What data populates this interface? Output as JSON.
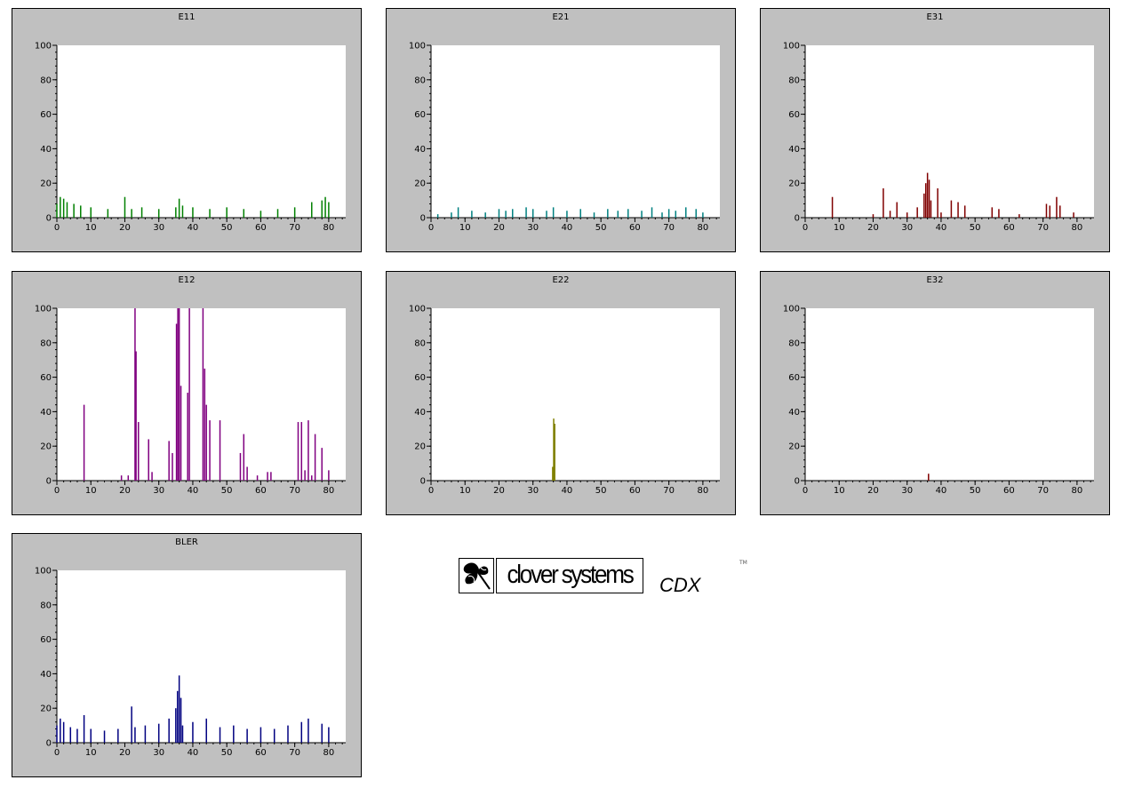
{
  "chart_data": [
    {
      "type": "bar",
      "title": "E11",
      "color": "#008000",
      "xlim": [
        0,
        85
      ],
      "ylim": [
        0,
        100
      ],
      "xticks": [
        0,
        10,
        20,
        30,
        40,
        50,
        60,
        70,
        80
      ],
      "yticks": [
        0,
        20,
        40,
        60,
        80,
        100
      ],
      "series": [
        {
          "x": [
            0,
            1,
            2,
            3,
            5,
            7,
            10,
            15,
            20,
            22,
            25,
            30,
            35,
            36,
            37,
            40,
            45,
            50,
            55,
            60,
            65,
            70,
            75,
            78,
            79,
            80
          ],
          "values": [
            8,
            12,
            11,
            9,
            8,
            7,
            6,
            5,
            12,
            5,
            6,
            5,
            6,
            11,
            7,
            6,
            5,
            6,
            5,
            4,
            5,
            6,
            9,
            10,
            12,
            9
          ]
        }
      ]
    },
    {
      "type": "bar",
      "title": "E21",
      "color": "#008080",
      "xlim": [
        0,
        85
      ],
      "ylim": [
        0,
        100
      ],
      "xticks": [
        0,
        10,
        20,
        30,
        40,
        50,
        60,
        70,
        80
      ],
      "yticks": [
        0,
        20,
        40,
        60,
        80,
        100
      ],
      "series": [
        {
          "x": [
            2,
            6,
            8,
            12,
            16,
            20,
            22,
            24,
            28,
            30,
            34,
            36,
            40,
            44,
            48,
            52,
            55,
            58,
            62,
            65,
            68,
            70,
            72,
            75,
            78,
            80
          ],
          "values": [
            2,
            3,
            6,
            4,
            3,
            5,
            4,
            5,
            6,
            5,
            4,
            6,
            4,
            5,
            3,
            5,
            4,
            5,
            4,
            6,
            3,
            5,
            4,
            6,
            5,
            3
          ]
        }
      ]
    },
    {
      "type": "bar",
      "title": "E31",
      "color": "#800000",
      "xlim": [
        0,
        85
      ],
      "ylim": [
        0,
        100
      ],
      "xticks": [
        0,
        10,
        20,
        30,
        40,
        50,
        60,
        70,
        80
      ],
      "yticks": [
        0,
        20,
        40,
        60,
        80,
        100
      ],
      "series": [
        {
          "x": [
            8,
            20,
            23,
            25,
            27,
            30,
            33,
            35,
            35.5,
            36,
            36.5,
            37,
            39,
            40,
            43,
            45,
            47,
            55,
            57,
            63,
            71,
            72,
            74,
            75,
            79
          ],
          "values": [
            12,
            2,
            17,
            4,
            9,
            3,
            6,
            14,
            20,
            26,
            22,
            10,
            17,
            3,
            10,
            9,
            7,
            6,
            5,
            2,
            8,
            7,
            12,
            7,
            3
          ]
        }
      ]
    },
    {
      "type": "bar",
      "title": "E12",
      "color": "#800080",
      "xlim": [
        0,
        85
      ],
      "ylim": [
        0,
        100
      ],
      "xticks": [
        0,
        10,
        20,
        30,
        40,
        50,
        60,
        70,
        80
      ],
      "yticks": [
        0,
        20,
        40,
        60,
        80,
        100
      ],
      "series": [
        {
          "x": [
            8,
            19,
            21,
            23,
            23.3,
            24,
            27,
            28,
            33,
            34,
            35.2,
            35.6,
            36,
            36.5,
            38.5,
            39,
            43,
            43.5,
            44,
            45,
            48,
            54,
            55,
            56,
            59,
            62,
            63,
            71,
            72,
            73,
            74,
            75,
            76,
            78,
            80
          ],
          "values": [
            44,
            3,
            3,
            100,
            75,
            34,
            24,
            5,
            23,
            16,
            91,
            100,
            100,
            55,
            51,
            100,
            100,
            65,
            44,
            35,
            35,
            16,
            27,
            8,
            3,
            5,
            5,
            34,
            34,
            6,
            35,
            3,
            27,
            19,
            6
          ]
        }
      ]
    },
    {
      "type": "bar",
      "title": "E22",
      "color": "#808000",
      "xlim": [
        0,
        85
      ],
      "ylim": [
        0,
        100
      ],
      "xticks": [
        0,
        10,
        20,
        30,
        40,
        50,
        60,
        70,
        80
      ],
      "yticks": [
        0,
        20,
        40,
        60,
        80,
        100
      ],
      "series": [
        {
          "x": [
            35.8,
            36.1,
            36.4
          ],
          "values": [
            8,
            36,
            33
          ]
        }
      ]
    },
    {
      "type": "bar",
      "title": "E32",
      "color": "#800000",
      "xlim": [
        0,
        85
      ],
      "ylim": [
        0,
        100
      ],
      "xticks": [
        0,
        10,
        20,
        30,
        40,
        50,
        60,
        70,
        80
      ],
      "yticks": [
        0,
        20,
        40,
        60,
        80,
        100
      ],
      "series": [
        {
          "x": [
            36.3
          ],
          "values": [
            4
          ]
        }
      ]
    },
    {
      "type": "bar",
      "title": "BLER",
      "color": "#000080",
      "xlim": [
        0,
        85
      ],
      "ylim": [
        0,
        100
      ],
      "xticks": [
        0,
        10,
        20,
        30,
        40,
        50,
        60,
        70,
        80
      ],
      "yticks": [
        0,
        20,
        40,
        60,
        80,
        100
      ],
      "series": [
        {
          "x": [
            0,
            1,
            2,
            4,
            6,
            8,
            10,
            14,
            18,
            22,
            23,
            26,
            30,
            33,
            35,
            35.5,
            36,
            36.5,
            37,
            40,
            44,
            48,
            52,
            56,
            60,
            64,
            68,
            72,
            74,
            78,
            80
          ],
          "values": [
            10,
            14,
            12,
            9,
            8,
            16,
            8,
            7,
            8,
            21,
            9,
            10,
            11,
            14,
            20,
            30,
            39,
            26,
            10,
            12,
            14,
            9,
            10,
            8,
            9,
            8,
            10,
            12,
            14,
            11,
            9
          ]
        }
      ]
    }
  ],
  "logo": {
    "brand": "clover systems",
    "product": "CDX",
    "tm": "TM"
  }
}
